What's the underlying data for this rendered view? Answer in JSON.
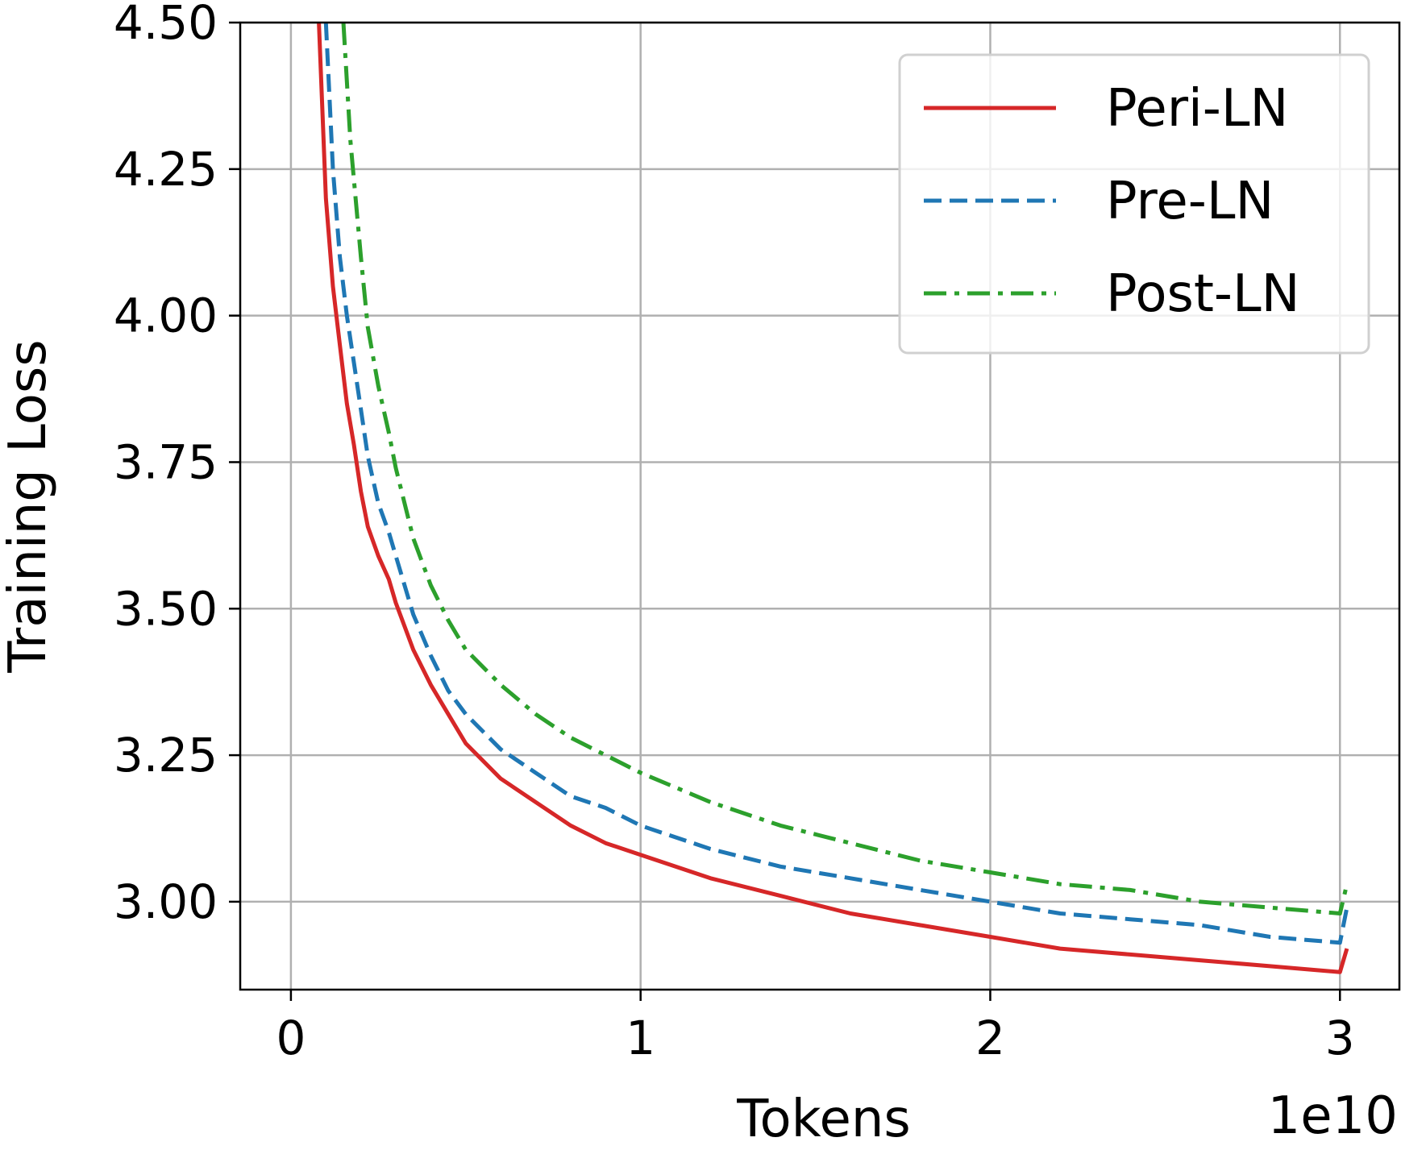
{
  "chart_data": {
    "type": "line",
    "xlabel": "Tokens",
    "ylabel": "Training Loss",
    "x_offset_label": "1e10",
    "xlim": [
      -0.145,
      3.17
    ],
    "ylim": [
      2.85,
      4.5
    ],
    "x_ticks": [
      0,
      1,
      2,
      3
    ],
    "x_tick_labels": [
      "0",
      "1",
      "2",
      "3"
    ],
    "y_ticks": [
      3.0,
      3.25,
      3.5,
      3.75,
      4.0,
      4.25,
      4.5
    ],
    "y_tick_labels": [
      "3.00",
      "3.25",
      "3.50",
      "3.75",
      "4.00",
      "4.25",
      "4.50"
    ],
    "grid": true,
    "legend_position": "top-right",
    "series": [
      {
        "name": "Peri-LN",
        "color": "#d62728",
        "dash": "solid",
        "x": [
          0.08,
          0.1,
          0.12,
          0.14,
          0.16,
          0.18,
          0.2,
          0.22,
          0.25,
          0.28,
          0.3,
          0.35,
          0.4,
          0.45,
          0.5,
          0.6,
          0.7,
          0.8,
          0.9,
          1.0,
          1.2,
          1.4,
          1.6,
          1.8,
          2.0,
          2.2,
          2.4,
          2.6,
          2.8,
          3.0,
          3.02
        ],
        "y": [
          4.5,
          4.2,
          4.05,
          3.95,
          3.85,
          3.78,
          3.7,
          3.64,
          3.59,
          3.55,
          3.51,
          3.43,
          3.37,
          3.32,
          3.27,
          3.21,
          3.17,
          3.13,
          3.1,
          3.08,
          3.04,
          3.01,
          2.98,
          2.96,
          2.94,
          2.92,
          2.91,
          2.9,
          2.89,
          2.88,
          2.92
        ]
      },
      {
        "name": "Pre-LN",
        "color": "#1f77b4",
        "dash": "dashed",
        "x": [
          0.1,
          0.12,
          0.14,
          0.16,
          0.18,
          0.2,
          0.22,
          0.25,
          0.28,
          0.3,
          0.35,
          0.4,
          0.45,
          0.5,
          0.6,
          0.7,
          0.8,
          0.9,
          1.0,
          1.2,
          1.4,
          1.6,
          1.8,
          2.0,
          2.2,
          2.4,
          2.6,
          2.8,
          3.0,
          3.02
        ],
        "y": [
          4.5,
          4.25,
          4.1,
          4.0,
          3.92,
          3.84,
          3.76,
          3.68,
          3.63,
          3.59,
          3.49,
          3.42,
          3.36,
          3.32,
          3.26,
          3.22,
          3.18,
          3.16,
          3.13,
          3.09,
          3.06,
          3.04,
          3.02,
          3.0,
          2.98,
          2.97,
          2.96,
          2.94,
          2.93,
          2.99
        ]
      },
      {
        "name": "Post-LN",
        "color": "#2ca02c",
        "dash": "dashdot",
        "x": [
          0.15,
          0.17,
          0.2,
          0.22,
          0.25,
          0.28,
          0.3,
          0.35,
          0.4,
          0.45,
          0.5,
          0.6,
          0.7,
          0.8,
          0.9,
          1.0,
          1.2,
          1.4,
          1.6,
          1.8,
          2.0,
          2.2,
          2.4,
          2.6,
          2.8,
          3.0,
          3.02
        ],
        "y": [
          4.5,
          4.3,
          4.1,
          3.98,
          3.88,
          3.8,
          3.74,
          3.62,
          3.54,
          3.48,
          3.43,
          3.37,
          3.32,
          3.28,
          3.25,
          3.22,
          3.17,
          3.13,
          3.1,
          3.07,
          3.05,
          3.03,
          3.02,
          3.0,
          2.99,
          2.98,
          3.03
        ]
      }
    ]
  }
}
